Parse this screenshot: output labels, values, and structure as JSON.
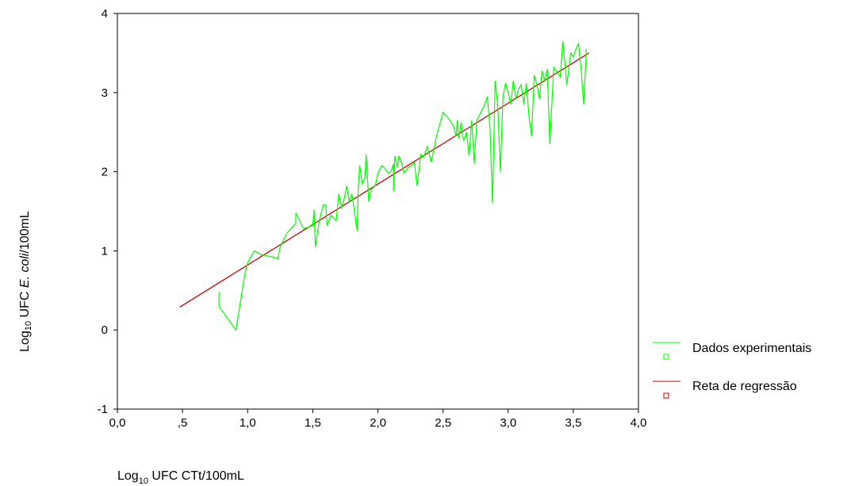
{
  "chart_data": {
    "type": "line",
    "xlabel_main": "Log",
    "xlabel_sub": "10",
    "xlabel_rest": " UFC CTt/100mL",
    "ylabel_main": "Log",
    "ylabel_sub": "10",
    "ylabel_rest": " UFC ",
    "ylabel_italic": "E. coli",
    "ylabel_end": "/100mL",
    "xlim": [
      0,
      4
    ],
    "ylim": [
      -1,
      4
    ],
    "x_ticks": [
      0,
      0.5,
      1.0,
      1.5,
      2.0,
      2.5,
      3.0,
      3.5,
      4.0
    ],
    "x_tick_labels": [
      "0,0",
      ",5",
      "1,0",
      "1,5",
      "2,0",
      "2,5",
      "3,0",
      "3,5",
      "4,0"
    ],
    "y_ticks": [
      -1,
      0,
      1,
      2,
      3,
      4
    ],
    "y_tick_labels": [
      "-1",
      "0",
      "1",
      "2",
      "3",
      "4"
    ],
    "grid": false,
    "legend_position": "right",
    "series": [
      {
        "name": "Dados experimentais",
        "color": "#00ff00",
        "marker": "open-square",
        "x": [
          0.78,
          0.78,
          0.91,
          0.98,
          1.0,
          1.05,
          1.11,
          1.2,
          1.23,
          1.25,
          1.3,
          1.37,
          1.37,
          1.43,
          1.5,
          1.51,
          1.52,
          1.55,
          1.58,
          1.6,
          1.61,
          1.64,
          1.68,
          1.7,
          1.72,
          1.74,
          1.76,
          1.78,
          1.8,
          1.82,
          1.84,
          1.85,
          1.86,
          1.88,
          1.9,
          1.91,
          1.93,
          1.95,
          1.98,
          2.0,
          2.03,
          2.05,
          2.08,
          2.1,
          2.12,
          2.12,
          2.13,
          2.15,
          2.16,
          2.18,
          2.2,
          2.23,
          2.26,
          2.28,
          2.3,
          2.33,
          2.35,
          2.38,
          2.41,
          2.45,
          2.5,
          2.54,
          2.58,
          2.6,
          2.61,
          2.62,
          2.64,
          2.65,
          2.66,
          2.68,
          2.7,
          2.72,
          2.74,
          2.76,
          2.79,
          2.82,
          2.84,
          2.86,
          2.88,
          2.9,
          2.92,
          2.94,
          2.96,
          2.98,
          3.0,
          3.02,
          3.04,
          3.06,
          3.08,
          3.1,
          3.12,
          3.14,
          3.16,
          3.18,
          3.2,
          3.22,
          3.24,
          3.26,
          3.28,
          3.3,
          3.32,
          3.35,
          3.38,
          3.4,
          3.42,
          3.45,
          3.48,
          3.5,
          3.52,
          3.54,
          3.56,
          3.58,
          3.6
        ],
        "y": [
          0.48,
          0.3,
          0.0,
          0.72,
          0.85,
          1.0,
          0.95,
          0.92,
          0.9,
          1.05,
          1.22,
          1.35,
          1.48,
          1.28,
          1.32,
          1.52,
          1.05,
          1.38,
          1.58,
          1.58,
          1.32,
          1.45,
          1.38,
          1.72,
          1.55,
          1.65,
          1.82,
          1.62,
          1.72,
          1.5,
          1.25,
          1.82,
          2.08,
          1.85,
          1.92,
          2.22,
          1.62,
          1.78,
          1.82,
          1.98,
          2.08,
          2.05,
          1.98,
          2.0,
          2.1,
          1.75,
          2.2,
          2.05,
          2.2,
          2.12,
          1.98,
          2.05,
          2.08,
          2.12,
          1.82,
          2.22,
          2.18,
          2.32,
          2.12,
          2.45,
          2.75,
          2.68,
          2.58,
          2.45,
          2.65,
          2.42,
          2.62,
          2.45,
          2.4,
          2.5,
          2.2,
          2.65,
          2.1,
          2.65,
          2.75,
          2.85,
          2.95,
          2.55,
          1.6,
          3.15,
          2.85,
          2.0,
          2.95,
          3.12,
          3.0,
          2.85,
          3.15,
          2.92,
          3.05,
          3.1,
          2.85,
          3.12,
          2.7,
          2.45,
          3.22,
          3.1,
          2.92,
          3.28,
          3.15,
          3.3,
          2.35,
          3.32,
          3.25,
          3.2,
          3.65,
          3.1,
          3.5,
          3.45,
          3.55,
          3.62,
          3.3,
          2.85,
          3.55
        ]
      },
      {
        "name": "Reta de regressão",
        "color": "#cc0000",
        "marker": "open-square",
        "x": [
          0.48,
          3.62
        ],
        "y": [
          0.29,
          3.5
        ]
      }
    ]
  }
}
